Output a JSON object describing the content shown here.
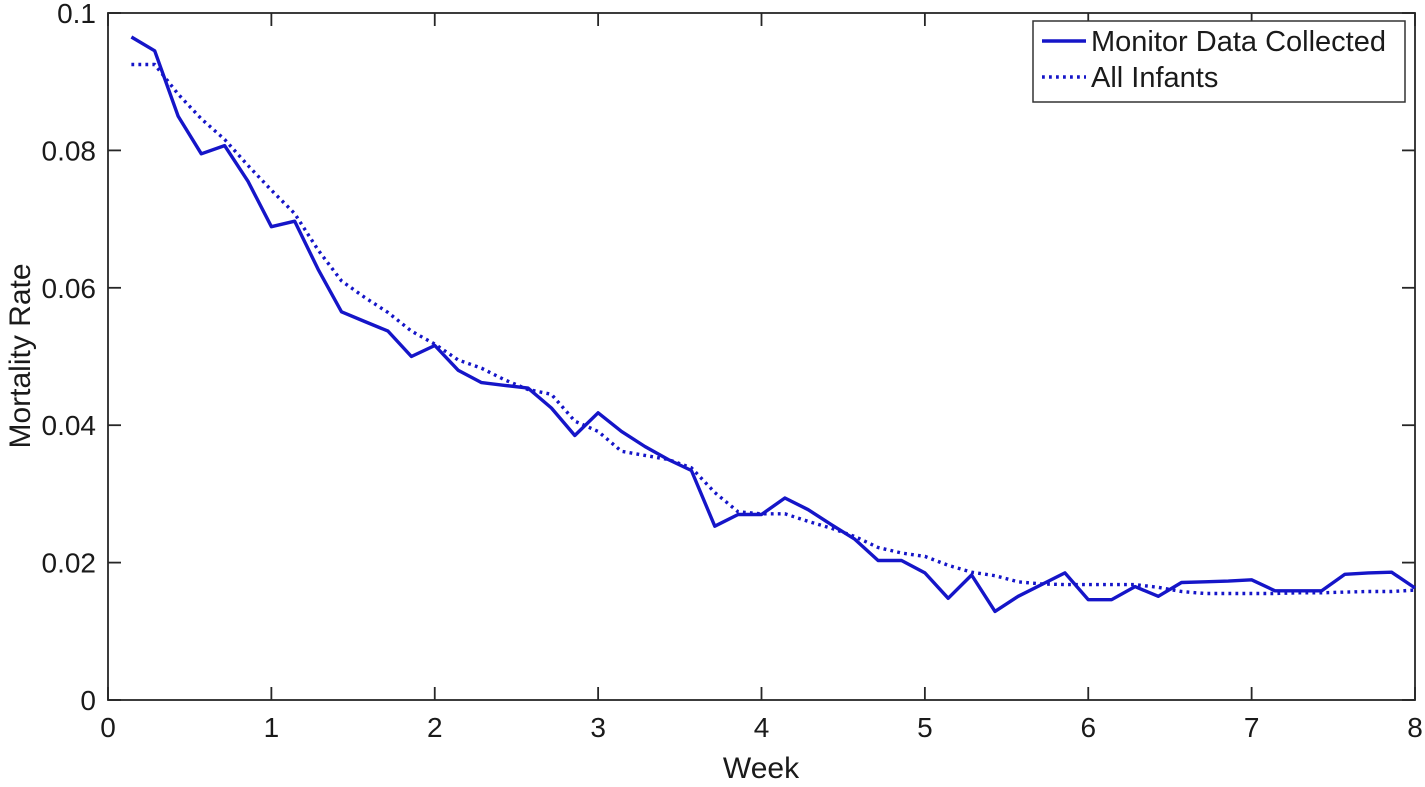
{
  "chart_data": {
    "type": "line",
    "title": "",
    "xlabel": "Week",
    "ylabel": "Mortality Rate",
    "xlim": [
      0,
      8
    ],
    "ylim": [
      0,
      0.1
    ],
    "x_ticks": [
      0,
      1,
      2,
      3,
      4,
      5,
      6,
      7,
      8
    ],
    "x_tick_labels": [
      "0",
      "1",
      "2",
      "3",
      "4",
      "5",
      "6",
      "7",
      "8"
    ],
    "y_ticks": [
      0,
      0.02,
      0.04,
      0.06,
      0.08,
      0.1
    ],
    "y_tick_labels": [
      "0",
      "0.02",
      "0.04",
      "0.06",
      "0.08",
      "0.1"
    ],
    "grid": false,
    "box": true,
    "legend_position": "top-right",
    "x": [
      0.143,
      0.286,
      0.429,
      0.571,
      0.714,
      0.857,
      1,
      1.143,
      1.286,
      1.429,
      1.571,
      1.714,
      1.857,
      2,
      2.143,
      2.286,
      2.429,
      2.571,
      2.714,
      2.857,
      3,
      3.143,
      3.286,
      3.429,
      3.571,
      3.714,
      3.857,
      4,
      4.143,
      4.286,
      4.429,
      4.571,
      4.714,
      4.857,
      5,
      5.143,
      5.286,
      5.429,
      5.571,
      5.714,
      5.857,
      6,
      6.143,
      6.286,
      6.429,
      6.571,
      6.714,
      6.857,
      7,
      7.143,
      7.286,
      7.429,
      7.571,
      7.714,
      7.857,
      8
    ],
    "series": [
      {
        "name": "Monitor Data Collected",
        "style": "solid",
        "color": "#1515c8",
        "values": [
          0.0965,
          0.0945,
          0.085,
          0.0795,
          0.0807,
          0.0755,
          0.0689,
          0.0697,
          0.0627,
          0.0565,
          0.0551,
          0.0537,
          0.05,
          0.0516,
          0.048,
          0.0462,
          0.0458,
          0.0454,
          0.0425,
          0.0385,
          0.0418,
          0.0391,
          0.0369,
          0.035,
          0.0334,
          0.0253,
          0.027,
          0.027,
          0.0294,
          0.0277,
          0.0255,
          0.0234,
          0.0203,
          0.0203,
          0.0185,
          0.0148,
          0.0182,
          0.0129,
          0.0151,
          0.0168,
          0.0185,
          0.0146,
          0.0146,
          0.0165,
          0.0151,
          0.0171,
          0.0172,
          0.0173,
          0.0175,
          0.0159,
          0.0159,
          0.0159,
          0.0183,
          0.0185,
          0.0186,
          0.0163
        ]
      },
      {
        "name": "All Infants",
        "style": "dotted",
        "color": "#1515c8",
        "values": [
          0.0925,
          0.0925,
          0.0882,
          0.0846,
          0.0816,
          0.0778,
          0.0742,
          0.0708,
          0.0655,
          0.061,
          0.0586,
          0.0564,
          0.0537,
          0.0518,
          0.0495,
          0.0483,
          0.0466,
          0.0452,
          0.0445,
          0.0406,
          0.0391,
          0.0362,
          0.0356,
          0.035,
          0.0338,
          0.0302,
          0.0274,
          0.0271,
          0.0271,
          0.026,
          0.025,
          0.0238,
          0.0222,
          0.0214,
          0.0209,
          0.0196,
          0.0186,
          0.0181,
          0.0172,
          0.0169,
          0.0168,
          0.0168,
          0.0168,
          0.0168,
          0.0164,
          0.0158,
          0.0155,
          0.0155,
          0.0155,
          0.0155,
          0.0156,
          0.0156,
          0.0157,
          0.0158,
          0.0158,
          0.016
        ]
      }
    ]
  },
  "layout_colors": {
    "axis_color": "#262626",
    "text_color": "#1a1a1a",
    "background": "#ffffff",
    "legend_border": "#333333"
  }
}
